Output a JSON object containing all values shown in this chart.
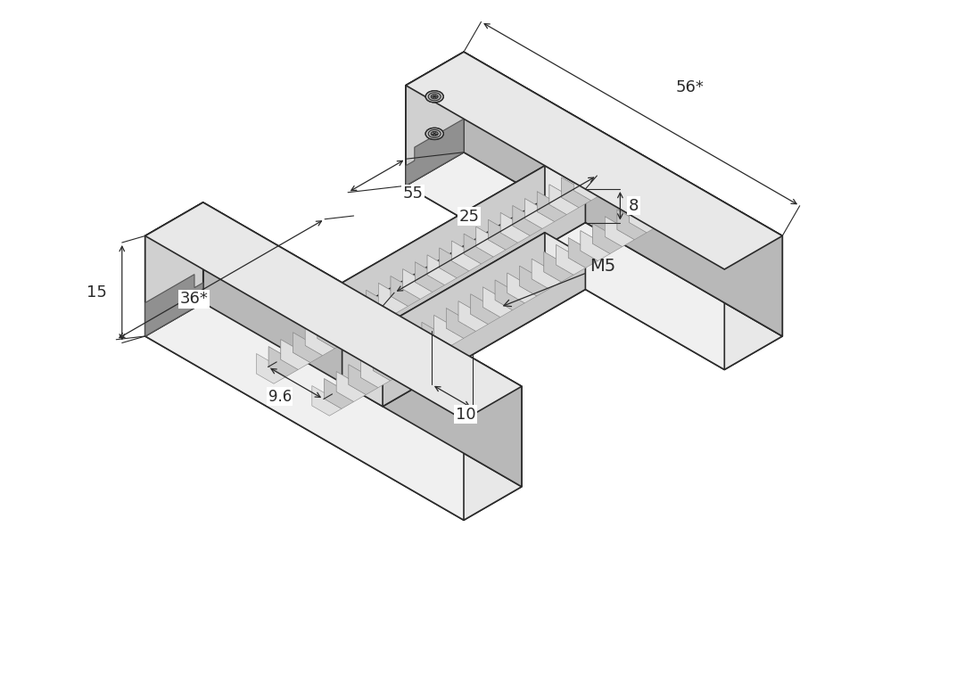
{
  "background_color": "#ffffff",
  "line_color": "#2a2a2a",
  "fc_top": "#e8e8e8",
  "fc_front": "#d0d0d0",
  "fc_right": "#c0c0c0",
  "fc_light": "#f0f0f0",
  "fc_mid": "#d8d8d8",
  "fc_dark": "#b8b8b8",
  "fc_darker": "#a8a8a8",
  "fc_slot": "#909090",
  "fc_screw_outer": "#c0c0c0",
  "fc_screw_mid": "#a8a8a8",
  "fc_screw_inner": "#888888",
  "scale": 7.5,
  "ox": 520,
  "oy": 390
}
